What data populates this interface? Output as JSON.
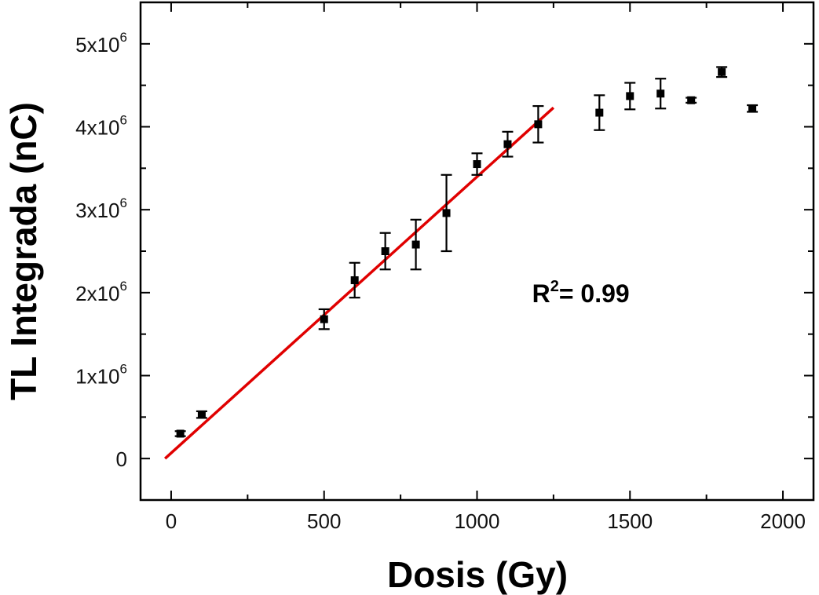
{
  "chart_data": {
    "type": "scatter",
    "title": "",
    "xlabel": "Dosis (Gy)",
    "ylabel": "TL Integrada (nC)",
    "xlim": [
      -100,
      2100
    ],
    "ylim": [
      -500000,
      5500000
    ],
    "x_ticks": [
      0,
      500,
      1000,
      1500,
      2000
    ],
    "x_tick_labels": [
      "0",
      "500",
      "1000",
      "1500",
      "2000"
    ],
    "y_ticks": [
      0,
      1000000,
      2000000,
      3000000,
      4000000,
      5000000
    ],
    "y_tick_labels": [
      {
        "mantissa": "0",
        "exponent": ""
      },
      {
        "mantissa": "1x10",
        "exponent": "6"
      },
      {
        "mantissa": "2x10",
        "exponent": "6"
      },
      {
        "mantissa": "3x10",
        "exponent": "6"
      },
      {
        "mantissa": "4x10",
        "exponent": "6"
      },
      {
        "mantissa": "5x10",
        "exponent": "6"
      }
    ],
    "grid": false,
    "series": [
      {
        "points": [
          {
            "x": 30,
            "y": 300000,
            "err": 30000
          },
          {
            "x": 100,
            "y": 530000,
            "err": 40000
          },
          {
            "x": 500,
            "y": 1680000,
            "err": 120000
          },
          {
            "x": 600,
            "y": 2150000,
            "err": 210000
          },
          {
            "x": 700,
            "y": 2500000,
            "err": 220000
          },
          {
            "x": 800,
            "y": 2580000,
            "err": 300000
          },
          {
            "x": 900,
            "y": 2960000,
            "err": 460000
          },
          {
            "x": 1000,
            "y": 3550000,
            "err": 130000
          },
          {
            "x": 1100,
            "y": 3790000,
            "err": 150000
          },
          {
            "x": 1200,
            "y": 4030000,
            "err": 220000
          },
          {
            "x": 1400,
            "y": 4170000,
            "err": 210000
          },
          {
            "x": 1500,
            "y": 4370000,
            "err": 160000
          },
          {
            "x": 1600,
            "y": 4400000,
            "err": 180000
          },
          {
            "x": 1700,
            "y": 4320000,
            "err": 30000
          },
          {
            "x": 1800,
            "y": 4660000,
            "err": 60000
          },
          {
            "x": 1900,
            "y": 4220000,
            "err": 40000
          }
        ],
        "color": "#000000"
      }
    ],
    "fit_line": {
      "x": [
        -20,
        1250
      ],
      "y": [
        0,
        4230000
      ],
      "color": "#e00000"
    },
    "annotation": {
      "base": "R",
      "superscript": "2",
      "text": "= 0.99",
      "x": 1180,
      "y": 2000000
    }
  }
}
